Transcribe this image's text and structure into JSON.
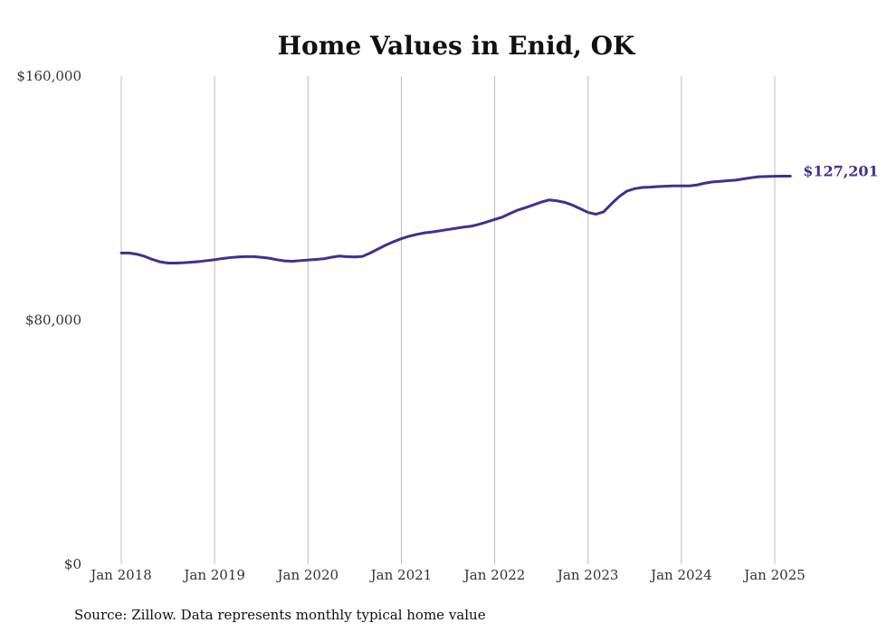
{
  "chart_data": {
    "type": "line",
    "title": "Home Values in Enid, OK",
    "xlabel": "",
    "ylabel": "",
    "ylim": [
      0,
      160000
    ],
    "y_ticks": [
      {
        "value": 0,
        "label": "$0"
      },
      {
        "value": 80000,
        "label": "$80,000"
      },
      {
        "value": 160000,
        "label": "$160,000"
      }
    ],
    "x_ticks": [
      {
        "value": "2018-01",
        "label": "Jan 2018"
      },
      {
        "value": "2019-01",
        "label": "Jan 2019"
      },
      {
        "value": "2020-01",
        "label": "Jan 2020"
      },
      {
        "value": "2021-01",
        "label": "Jan 2021"
      },
      {
        "value": "2022-01",
        "label": "Jan 2022"
      },
      {
        "value": "2023-01",
        "label": "Jan 2023"
      },
      {
        "value": "2024-01",
        "label": "Jan 2024"
      },
      {
        "value": "2025-01",
        "label": "Jan 2025"
      }
    ],
    "xlim": [
      "2018-01",
      "2025-03"
    ],
    "grid": "vertical",
    "line_color": "#3d3290",
    "series": [
      {
        "x": [
          "2018-01",
          "2018-02",
          "2018-03",
          "2018-04",
          "2018-05",
          "2018-06",
          "2018-07",
          "2018-08",
          "2018-09",
          "2018-10",
          "2018-11",
          "2018-12",
          "2019-01",
          "2019-02",
          "2019-03",
          "2019-04",
          "2019-05",
          "2019-06",
          "2019-07",
          "2019-08",
          "2019-09",
          "2019-10",
          "2019-11",
          "2019-12",
          "2020-01",
          "2020-02",
          "2020-03",
          "2020-04",
          "2020-05",
          "2020-06",
          "2020-07",
          "2020-08",
          "2020-09",
          "2020-10",
          "2020-11",
          "2020-12",
          "2021-01",
          "2021-02",
          "2021-03",
          "2021-04",
          "2021-05",
          "2021-06",
          "2021-07",
          "2021-08",
          "2021-09",
          "2021-10",
          "2021-11",
          "2021-12",
          "2022-01",
          "2022-02",
          "2022-03",
          "2022-04",
          "2022-05",
          "2022-06",
          "2022-07",
          "2022-08",
          "2022-09",
          "2022-10",
          "2022-11",
          "2022-12",
          "2023-01",
          "2023-02",
          "2023-03",
          "2023-04",
          "2023-05",
          "2023-06",
          "2023-07",
          "2023-08",
          "2023-09",
          "2023-10",
          "2023-11",
          "2023-12",
          "2024-01",
          "2024-02",
          "2024-03",
          "2024-04",
          "2024-05",
          "2024-06",
          "2024-07",
          "2024-08",
          "2024-09",
          "2024-10",
          "2024-11",
          "2024-12",
          "2025-01",
          "2025-02",
          "2025-03"
        ],
        "values": [
          102000,
          102000,
          101600,
          100900,
          99900,
          99100,
          98700,
          98700,
          98800,
          99000,
          99200,
          99500,
          99800,
          100200,
          100500,
          100700,
          100800,
          100800,
          100600,
          100300,
          99800,
          99400,
          99300,
          99500,
          99700,
          99900,
          100100,
          100600,
          101000,
          100800,
          100700,
          100900,
          102000,
          103300,
          104600,
          105700,
          106700,
          107500,
          108100,
          108600,
          108900,
          109300,
          109700,
          110100,
          110500,
          110800,
          111400,
          112200,
          113000,
          113800,
          115000,
          116100,
          116900,
          117800,
          118700,
          119400,
          119100,
          118600,
          117700,
          116500,
          115300,
          114700,
          115500,
          118100,
          120500,
          122300,
          123100,
          123500,
          123600,
          123800,
          123900,
          124000,
          124000,
          124000,
          124300,
          124900,
          125300,
          125500,
          125700,
          125900,
          126300,
          126700,
          127000,
          127100,
          127150,
          127180,
          127201
        ],
        "end_label": "$127,201"
      }
    ]
  },
  "source_note": "Source: Zillow. Data represents monthly typical home value"
}
